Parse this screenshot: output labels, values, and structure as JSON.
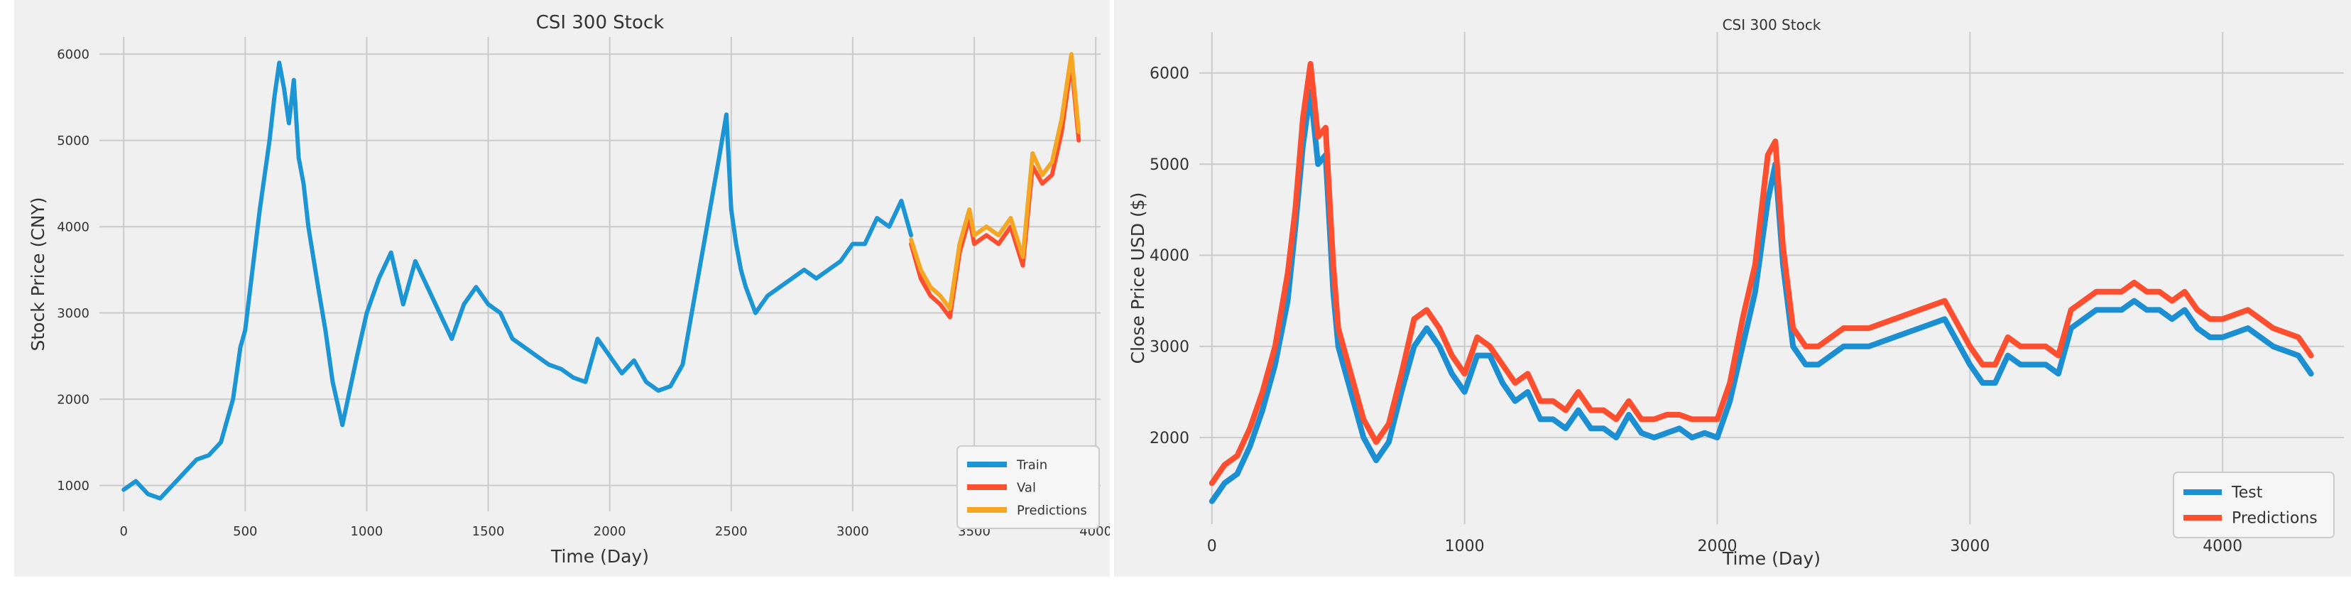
{
  "colors": {
    "train": "#1b95d3",
    "val": "#fc4f30",
    "predictions_left": "#f5a623",
    "test": "#1b8fd2",
    "predictions_right": "#fc4f30",
    "background": "#f0f0f0",
    "grid": "#cbcbcb"
  },
  "chart_data": [
    {
      "type": "line",
      "title": "CSI 300 Stock",
      "xlabel": "Time (Day)",
      "ylabel": "Stock Price (CNY)",
      "xlim": [
        -100,
        4020
      ],
      "ylim": [
        700,
        6200
      ],
      "xticks": [
        0,
        500,
        1000,
        1500,
        2000,
        2500,
        3000,
        3500,
        4000
      ],
      "yticks": [
        1000,
        2000,
        3000,
        4000,
        5000,
        6000
      ],
      "grid": true,
      "legend_position": "lower-right",
      "series": [
        {
          "name": "Train",
          "color_key": "train",
          "x": [
            0,
            50,
            100,
            150,
            200,
            250,
            300,
            350,
            400,
            450,
            480,
            500,
            530,
            560,
            600,
            620,
            640,
            660,
            680,
            700,
            720,
            740,
            760,
            800,
            830,
            860,
            900,
            930,
            960,
            1000,
            1050,
            1100,
            1150,
            1200,
            1250,
            1300,
            1350,
            1400,
            1450,
            1500,
            1550,
            1600,
            1650,
            1700,
            1750,
            1800,
            1850,
            1900,
            1950,
            2000,
            2050,
            2100,
            2150,
            2200,
            2250,
            2300,
            2350,
            2400,
            2450,
            2480,
            2500,
            2520,
            2540,
            2560,
            2600,
            2650,
            2700,
            2750,
            2800,
            2850,
            2900,
            2950,
            3000,
            3050,
            3100,
            3150,
            3200,
            3240
          ],
          "values": [
            950,
            1050,
            900,
            850,
            1000,
            1150,
            1300,
            1350,
            1500,
            2000,
            2600,
            2800,
            3500,
            4200,
            5000,
            5500,
            5900,
            5600,
            5200,
            5700,
            4800,
            4500,
            4000,
            3300,
            2800,
            2200,
            1700,
            2100,
            2500,
            3000,
            3400,
            3700,
            3100,
            3600,
            3300,
            3000,
            2700,
            3100,
            3300,
            3100,
            3000,
            2700,
            2600,
            2500,
            2400,
            2350,
            2250,
            2200,
            2700,
            2500,
            2300,
            2450,
            2200,
            2100,
            2150,
            2400,
            3200,
            4000,
            4800,
            5300,
            4200,
            3800,
            3500,
            3300,
            3000,
            3200,
            3300,
            3400,
            3500,
            3400,
            3500,
            3600,
            3800,
            3800,
            4100,
            4000,
            4300,
            3900
          ]
        },
        {
          "name": "Val",
          "color_key": "val",
          "x": [
            3240,
            3280,
            3320,
            3360,
            3400,
            3440,
            3480,
            3500,
            3550,
            3600,
            3650,
            3700,
            3740,
            3780,
            3820,
            3860,
            3900,
            3930
          ],
          "values": [
            3800,
            3400,
            3200,
            3100,
            2950,
            3700,
            4100,
            3800,
            3900,
            3800,
            4000,
            3550,
            4700,
            4500,
            4600,
            5100,
            5900,
            5000
          ]
        },
        {
          "name": "Predictions",
          "color_key": "predictions_left",
          "x": [
            3240,
            3280,
            3320,
            3360,
            3400,
            3440,
            3480,
            3500,
            3550,
            3600,
            3650,
            3700,
            3740,
            3780,
            3820,
            3860,
            3900,
            3930
          ],
          "values": [
            3850,
            3500,
            3300,
            3200,
            3050,
            3800,
            4200,
            3900,
            4000,
            3900,
            4100,
            3650,
            4850,
            4600,
            4750,
            5250,
            6000,
            5100
          ]
        }
      ]
    },
    {
      "type": "line",
      "title": "CSI 300 Stock",
      "xlabel": "Time (Day)",
      "ylabel": "Close Price USD ($)",
      "xlim": [
        -50,
        4480
      ],
      "ylim": [
        1050,
        6450
      ],
      "xticks": [
        0,
        1000,
        2000,
        3000,
        4000
      ],
      "yticks": [
        2000,
        3000,
        4000,
        5000,
        6000
      ],
      "grid": true,
      "legend_position": "lower-right",
      "series": [
        {
          "name": "Test",
          "color_key": "test",
          "x": [
            0,
            50,
            100,
            150,
            200,
            250,
            300,
            330,
            360,
            390,
            420,
            450,
            480,
            500,
            550,
            600,
            650,
            700,
            750,
            800,
            850,
            900,
            950,
            1000,
            1050,
            1100,
            1150,
            1200,
            1250,
            1300,
            1350,
            1400,
            1450,
            1500,
            1550,
            1600,
            1650,
            1700,
            1750,
            1800,
            1850,
            1900,
            1950,
            2000,
            2050,
            2100,
            2150,
            2200,
            2230,
            2260,
            2300,
            2350,
            2400,
            2450,
            2500,
            2600,
            2700,
            2800,
            2900,
            3000,
            3050,
            3100,
            3150,
            3200,
            3250,
            3300,
            3350,
            3400,
            3450,
            3500,
            3550,
            3600,
            3650,
            3700,
            3750,
            3800,
            3850,
            3900,
            3950,
            4000,
            4100,
            4200,
            4300,
            4350
          ],
          "values": [
            1300,
            1500,
            1600,
            1900,
            2300,
            2800,
            3500,
            4300,
            5200,
            5800,
            5000,
            5100,
            3600,
            3000,
            2500,
            2000,
            1750,
            1950,
            2500,
            3000,
            3200,
            3000,
            2700,
            2500,
            2900,
            2900,
            2600,
            2400,
            2500,
            2200,
            2200,
            2100,
            2300,
            2100,
            2100,
            2000,
            2250,
            2050,
            2000,
            2050,
            2100,
            2000,
            2050,
            2000,
            2400,
            3000,
            3600,
            4600,
            5000,
            3900,
            3000,
            2800,
            2800,
            2900,
            3000,
            3000,
            3100,
            3200,
            3300,
            2800,
            2600,
            2600,
            2900,
            2800,
            2800,
            2800,
            2700,
            3200,
            3300,
            3400,
            3400,
            3400,
            3500,
            3400,
            3400,
            3300,
            3400,
            3200,
            3100,
            3100,
            3200,
            3000,
            2900,
            2700
          ]
        },
        {
          "name": "Predictions",
          "color_key": "predictions_right",
          "x": [
            0,
            50,
            100,
            150,
            200,
            250,
            300,
            330,
            360,
            390,
            420,
            450,
            480,
            500,
            550,
            600,
            650,
            700,
            750,
            800,
            850,
            900,
            950,
            1000,
            1050,
            1100,
            1150,
            1200,
            1250,
            1300,
            1350,
            1400,
            1450,
            1500,
            1550,
            1600,
            1650,
            1700,
            1750,
            1800,
            1850,
            1900,
            1950,
            2000,
            2050,
            2100,
            2150,
            2200,
            2230,
            2260,
            2300,
            2350,
            2400,
            2450,
            2500,
            2600,
            2700,
            2800,
            2900,
            3000,
            3050,
            3100,
            3150,
            3200,
            3250,
            3300,
            3350,
            3400,
            3450,
            3500,
            3550,
            3600,
            3650,
            3700,
            3750,
            3800,
            3850,
            3900,
            3950,
            4000,
            4100,
            4200,
            4300,
            4350
          ],
          "values": [
            1500,
            1700,
            1800,
            2100,
            2500,
            3000,
            3800,
            4500,
            5500,
            6100,
            5300,
            5400,
            3900,
            3200,
            2700,
            2200,
            1950,
            2150,
            2700,
            3300,
            3400,
            3200,
            2900,
            2700,
            3100,
            3000,
            2800,
            2600,
            2700,
            2400,
            2400,
            2300,
            2500,
            2300,
            2300,
            2200,
            2400,
            2200,
            2200,
            2250,
            2250,
            2200,
            2200,
            2200,
            2600,
            3300,
            3900,
            5100,
            5250,
            4100,
            3200,
            3000,
            3000,
            3100,
            3200,
            3200,
            3300,
            3400,
            3500,
            3000,
            2800,
            2800,
            3100,
            3000,
            3000,
            3000,
            2900,
            3400,
            3500,
            3600,
            3600,
            3600,
            3700,
            3600,
            3600,
            3500,
            3600,
            3400,
            3300,
            3300,
            3400,
            3200,
            3100,
            2900
          ]
        }
      ]
    }
  ]
}
